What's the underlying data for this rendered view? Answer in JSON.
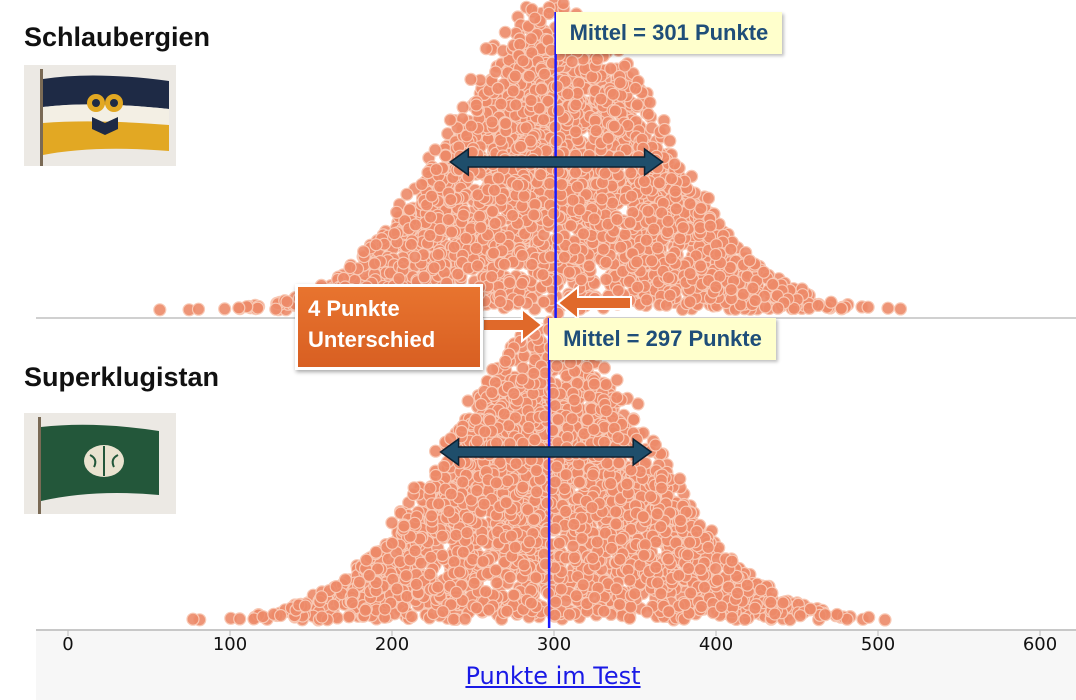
{
  "chart_data": {
    "type": "scatter",
    "subtype": "beeswarm",
    "xlabel": "Punkte im Test",
    "xlim": [
      0,
      600
    ],
    "xticks": [
      0,
      100,
      200,
      300,
      400,
      500,
      600
    ],
    "groups": [
      {
        "name": "Schlaubergien",
        "mean": 301,
        "mean_label": "Mittel = 301 Punkte",
        "sd_approx": 65,
        "range_approx": [
          55,
          540
        ],
        "n_approx": 3000,
        "spread_arrow": [
          236,
          367
        ]
      },
      {
        "name": "Superklugistan",
        "mean": 297,
        "mean_label": "Mittel = 297 Punkte",
        "sd_approx": 65,
        "range_approx": [
          62,
          518
        ],
        "n_approx": 3000,
        "spread_arrow": [
          230,
          360
        ]
      }
    ],
    "annotation": {
      "line1": "4 Punkte",
      "line2": "Unterschied"
    },
    "colors": {
      "dot": "#ec8a68",
      "dot_stroke": "#f8c9b5",
      "mean_line": "#1a1aff",
      "label_bg": "#ffffcc",
      "label_text": "#1f4e79",
      "annotation_bg": "#e0692a",
      "spread_arrow": "#1f4e6b"
    }
  }
}
